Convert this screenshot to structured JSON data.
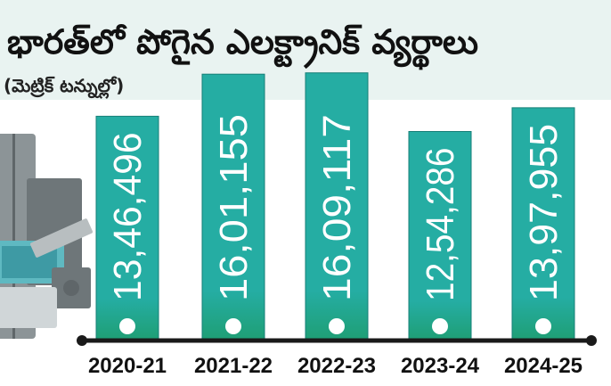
{
  "colors": {
    "bar_top": "#25ada3",
    "bar_bottom": "#1f9f76",
    "bar_edge": "#167f77",
    "value_text": "#ffffff",
    "axis": "#1a1a1a",
    "title": "#111111",
    "subtitle": "#222222",
    "title_band": "#e9f3f1",
    "appliance_gray": "#8c9497",
    "appliance_teal": "#5fb9c1"
  },
  "chart_data": {
    "type": "bar",
    "title": "భారత్‌లో పోగైన ఎలక్ట్రానిక్ వ్యర్థాలు",
    "subtitle": "(మెట్రిక్ టన్నుల్లో)",
    "categories": [
      "2020-21",
      "2021-22",
      "2022-23",
      "2023-24",
      "2024-25"
    ],
    "values": [
      1346496,
      1601155,
      1609117,
      1254286,
      1397955
    ],
    "value_labels": [
      "13,46,496",
      "16,01,155",
      "16,09,117",
      "12,54,286",
      "13,97,955"
    ],
    "xlabel": "",
    "ylabel": "",
    "ylim": [
      0,
      1640000
    ],
    "grid": false,
    "legend": "none"
  }
}
